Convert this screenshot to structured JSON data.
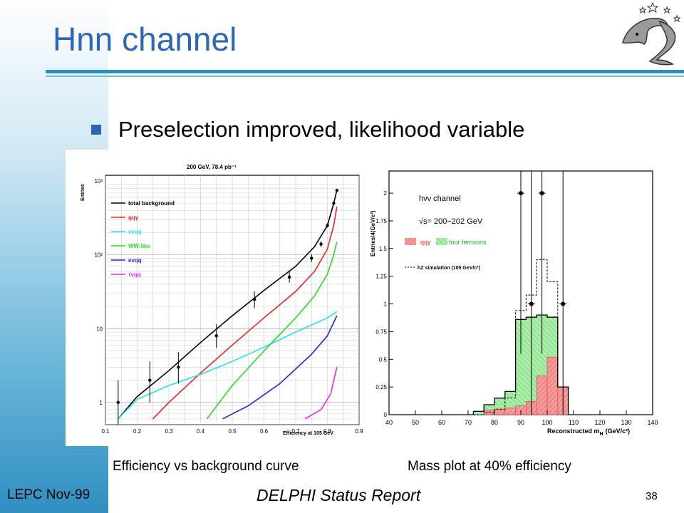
{
  "slide": {
    "title": "Hnn channel",
    "bullet": "Preselection improved, likelihood variable",
    "caption_left": "Efficiency vs background curve",
    "caption_right": "Mass plot at 40% efficiency",
    "footer_left": "LEPC Nov-99",
    "footer_center": "DELPHI Status Report",
    "page_number": "38",
    "accent_color": "#2b66b8",
    "logo_icon": "delphi-dolphin-logo-icon"
  },
  "chart_data": [
    {
      "type": "line",
      "title": "200 GeV, 78.4 pb⁻¹",
      "xlabel": "Efficiency at 105 GeV",
      "ylabel": "Entries",
      "xlim": [
        0.1,
        0.9
      ],
      "ylim": [
        0.5,
        1200
      ],
      "yscale": "log",
      "grid": true,
      "x_ticks": [
        "0.1",
        "0.2",
        "0.3",
        "0.4",
        "0.5",
        "0.6",
        "0.7",
        "0.8",
        "0.9"
      ],
      "y_ticks": [
        {
          "value": 1,
          "label": "1"
        },
        {
          "value": 10,
          "label": "10"
        },
        {
          "value": 100,
          "label": "10²"
        },
        {
          "value": 1000,
          "label": "10³"
        }
      ],
      "legend_position": "top-left",
      "series": [
        {
          "name": "total background",
          "color": "#000000",
          "x": [
            0.14,
            0.2,
            0.3,
            0.4,
            0.5,
            0.6,
            0.7,
            0.76,
            0.8,
            0.82,
            0.83
          ],
          "y": [
            0.6,
            1.2,
            2.7,
            6.5,
            15,
            33,
            70,
            130,
            250,
            500,
            750
          ]
        },
        {
          "name": "qqγ",
          "color": "#ee2020",
          "x": [
            0.25,
            0.3,
            0.4,
            0.5,
            0.6,
            0.7,
            0.76,
            0.8,
            0.82,
            0.83
          ],
          "y": [
            0.6,
            1,
            2.5,
            6,
            14,
            32,
            60,
            120,
            250,
            450
          ]
        },
        {
          "name": "ννqq",
          "color": "#22e4ee",
          "x": [
            0.14,
            0.2,
            0.3,
            0.4,
            0.5,
            0.6,
            0.7,
            0.8,
            0.83
          ],
          "y": [
            0.6,
            1.1,
            1.7,
            2.4,
            3.6,
            5.6,
            9,
            14,
            17
          ]
        },
        {
          "name": "WW-like",
          "color": "#22dd22",
          "x": [
            0.42,
            0.5,
            0.6,
            0.7,
            0.76,
            0.8,
            0.82,
            0.83
          ],
          "y": [
            0.6,
            1.7,
            5,
            14,
            28,
            55,
            100,
            150
          ]
        },
        {
          "name": "eνqq",
          "color": "#2222dd",
          "x": [
            0.47,
            0.55,
            0.65,
            0.75,
            0.8,
            0.83
          ],
          "y": [
            0.6,
            0.9,
            1.8,
            4.5,
            8,
            15
          ]
        },
        {
          "name": "τνqq",
          "color": "#ee22ee",
          "x": [
            0.73,
            0.78,
            0.81,
            0.83
          ],
          "y": [
            0.6,
            0.8,
            1.3,
            3
          ]
        }
      ],
      "data_points": [
        {
          "x": 0.14,
          "y": 1.0,
          "lo": 0.5,
          "hi": 2.0
        },
        {
          "x": 0.24,
          "y": 2.0,
          "lo": 1.0,
          "hi": 3.6
        },
        {
          "x": 0.33,
          "y": 3.0,
          "lo": 1.8,
          "hi": 4.8
        },
        {
          "x": 0.45,
          "y": 8.0,
          "lo": 5.5,
          "hi": 11.5
        },
        {
          "x": 0.57,
          "y": 25,
          "lo": 19,
          "hi": 32
        },
        {
          "x": 0.68,
          "y": 50,
          "lo": 42,
          "hi": 60
        },
        {
          "x": 0.75,
          "y": 90,
          "lo": 80,
          "hi": 102
        },
        {
          "x": 0.78,
          "y": 140,
          "lo": 128,
          "hi": 154
        },
        {
          "x": 0.8,
          "y": 250,
          "lo": 235,
          "hi": 266
        },
        {
          "x": 0.82,
          "y": 500,
          "lo": 478,
          "hi": 522
        },
        {
          "x": 0.83,
          "y": 750,
          "lo": 722,
          "hi": 778
        }
      ]
    },
    {
      "type": "bar",
      "title": "",
      "xlabel": "Reconstructed m",
      "xlabel_subscript": "H",
      "xlabel_unit": "(GeV/c²)",
      "ylabel": "Entries/4(GeV/c²)",
      "xlim": [
        40,
        140
      ],
      "ylim": [
        0,
        2.2
      ],
      "x_ticks": [
        "40",
        "50",
        "60",
        "70",
        "80",
        "90",
        "100",
        "110",
        "120",
        "130",
        "140"
      ],
      "y_ticks": [
        "0",
        "0.25",
        "0.5",
        "0.75",
        "1",
        "1.25",
        "1.5",
        "1.75",
        "2"
      ],
      "legend": {
        "channel": "hνν channel",
        "energy": "√s= 200−202  GeV",
        "qqg_label": "qqγ",
        "four_fermions_label": "four fermions",
        "simulation_label": "hZ simulation (105 GeV/c²)"
      },
      "bin_edges": [
        72,
        76,
        80,
        84,
        88,
        92,
        96,
        100,
        104,
        108
      ],
      "series": [
        {
          "name": "qqγ",
          "color": "#f08a8a",
          "values": [
            0,
            0.04,
            0.05,
            0.06,
            0.08,
            0.12,
            0.35,
            0.52,
            0.25
          ]
        },
        {
          "name": "four fermions",
          "color": "#9ae89a",
          "values": [
            0.03,
            0.05,
            0.1,
            0.15,
            0.78,
            0.76,
            0.55,
            0.36,
            0
          ]
        }
      ],
      "total_line": [
        0.03,
        0.09,
        0.15,
        0.21,
        0.86,
        0.88,
        0.9,
        0.88,
        0.25
      ],
      "simulation_line": [
        0,
        0.02,
        0.05,
        0.15,
        0.94,
        1.08,
        1.4,
        1.2,
        0.25
      ],
      "data_points": [
        {
          "x": 94,
          "y": 1,
          "lo": 0,
          "hi": 2.2
        },
        {
          "x": 90,
          "y": 2,
          "lo": 0.55,
          "hi": 2.2
        },
        {
          "x": 98,
          "y": 2,
          "lo": 0.55,
          "hi": 2.2
        },
        {
          "x": 106,
          "y": 1,
          "lo": 0,
          "hi": 2.2
        }
      ]
    }
  ]
}
